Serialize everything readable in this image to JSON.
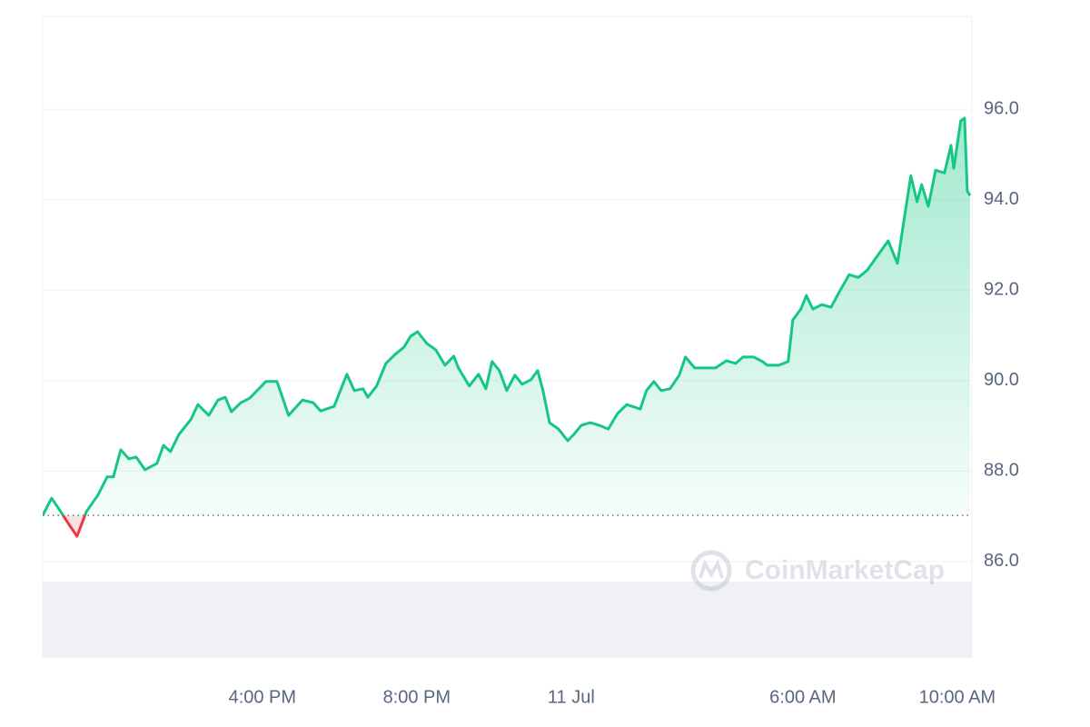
{
  "chart_data": {
    "type": "line",
    "color": "#16c784",
    "down_color": "#ea3943",
    "grid": true,
    "watermark": "CoinMarketCap",
    "baseline": 87.02,
    "x": [
      10.31,
      10.54,
      10.78,
      10.96,
      11.2,
      11.44,
      11.74,
      11.98,
      12.14,
      12.33,
      12.54,
      12.73,
      12.96,
      13.27,
      13.44,
      13.62,
      13.84,
      14.14,
      14.33,
      14.61,
      14.85,
      15.04,
      15.2,
      15.44,
      15.67,
      15.91,
      16.09,
      16.38,
      16.68,
      17.04,
      17.32,
      17.51,
      17.86,
      18.02,
      18.19,
      18.38,
      18.61,
      18.73,
      18.96,
      19.2,
      19.44,
      19.67,
      19.84,
      20.02,
      20.26,
      20.49,
      20.73,
      20.96,
      21.08,
      21.36,
      21.6,
      21.79,
      21.95,
      22.14,
      22.33,
      22.54,
      22.73,
      22.96,
      23.13,
      23.27,
      23.44,
      23.67,
      23.91,
      24.07,
      24.26,
      24.49,
      24.73,
      24.96,
      25.2,
      25.44,
      25.79,
      25.95,
      26.14,
      26.33,
      26.56,
      26.8,
      26.96,
      27.2,
      27.44,
      27.74,
      28.02,
      28.26,
      28.45,
      28.73,
      28.96,
      29.08,
      29.38,
      29.62,
      29.74,
      29.95,
      30.09,
      30.26,
      30.49,
      30.73,
      30.96,
      31.2,
      31.44,
      31.67,
      31.91,
      32.21,
      32.45,
      32.61,
      32.8,
      32.96,
      33.08,
      33.25,
      33.44,
      33.67,
      33.84,
      33.91,
      34.09,
      34.19,
      34.26,
      34.33
    ],
    "values": [
      87.02,
      87.4,
      87.1,
      86.86,
      86.56,
      87.1,
      87.47,
      87.87,
      87.87,
      88.47,
      88.27,
      88.31,
      88.03,
      88.17,
      88.57,
      88.43,
      88.81,
      89.13,
      89.47,
      89.23,
      89.57,
      89.63,
      89.31,
      89.51,
      89.61,
      89.82,
      89.98,
      89.98,
      89.23,
      89.57,
      89.51,
      89.33,
      89.43,
      89.78,
      90.14,
      89.78,
      89.82,
      89.63,
      89.88,
      90.38,
      90.58,
      90.74,
      90.98,
      91.08,
      90.82,
      90.68,
      90.34,
      90.54,
      90.28,
      89.88,
      90.14,
      89.82,
      90.42,
      90.22,
      89.78,
      90.12,
      89.92,
      90.02,
      90.22,
      89.78,
      89.07,
      88.93,
      88.67,
      88.81,
      89.01,
      89.07,
      89.01,
      88.93,
      89.27,
      89.47,
      89.37,
      89.78,
      89.98,
      89.78,
      89.82,
      90.12,
      90.52,
      90.28,
      90.28,
      90.28,
      90.44,
      90.38,
      90.52,
      90.52,
      90.42,
      90.34,
      90.34,
      90.42,
      91.34,
      91.58,
      91.88,
      91.58,
      91.68,
      91.62,
      91.98,
      92.34,
      92.28,
      92.44,
      92.73,
      93.09,
      92.59,
      93.49,
      94.53,
      93.95,
      94.33,
      93.85,
      94.65,
      94.59,
      95.2,
      94.69,
      95.74,
      95.8,
      94.19,
      94.09
    ],
    "xlim": [
      10.31,
      34.38
    ],
    "xticks": [
      {
        "value": 16,
        "label": "4:00 PM"
      },
      {
        "value": 20,
        "label": "8:00 PM"
      },
      {
        "value": 24,
        "label": "11 Jul"
      },
      {
        "value": 30,
        "label": "6:00 AM"
      },
      {
        "value": 34,
        "label": "10:00 AM"
      }
    ],
    "ylim": [
      83.87,
      98.05
    ],
    "yticks": [
      {
        "value": 86,
        "label": "86.0"
      },
      {
        "value": 88,
        "label": "88.0"
      },
      {
        "value": 90,
        "label": "90.0"
      },
      {
        "value": 92,
        "label": "92.0"
      },
      {
        "value": 94,
        "label": "94.0"
      },
      {
        "value": 96,
        "label": "96.0"
      }
    ]
  }
}
